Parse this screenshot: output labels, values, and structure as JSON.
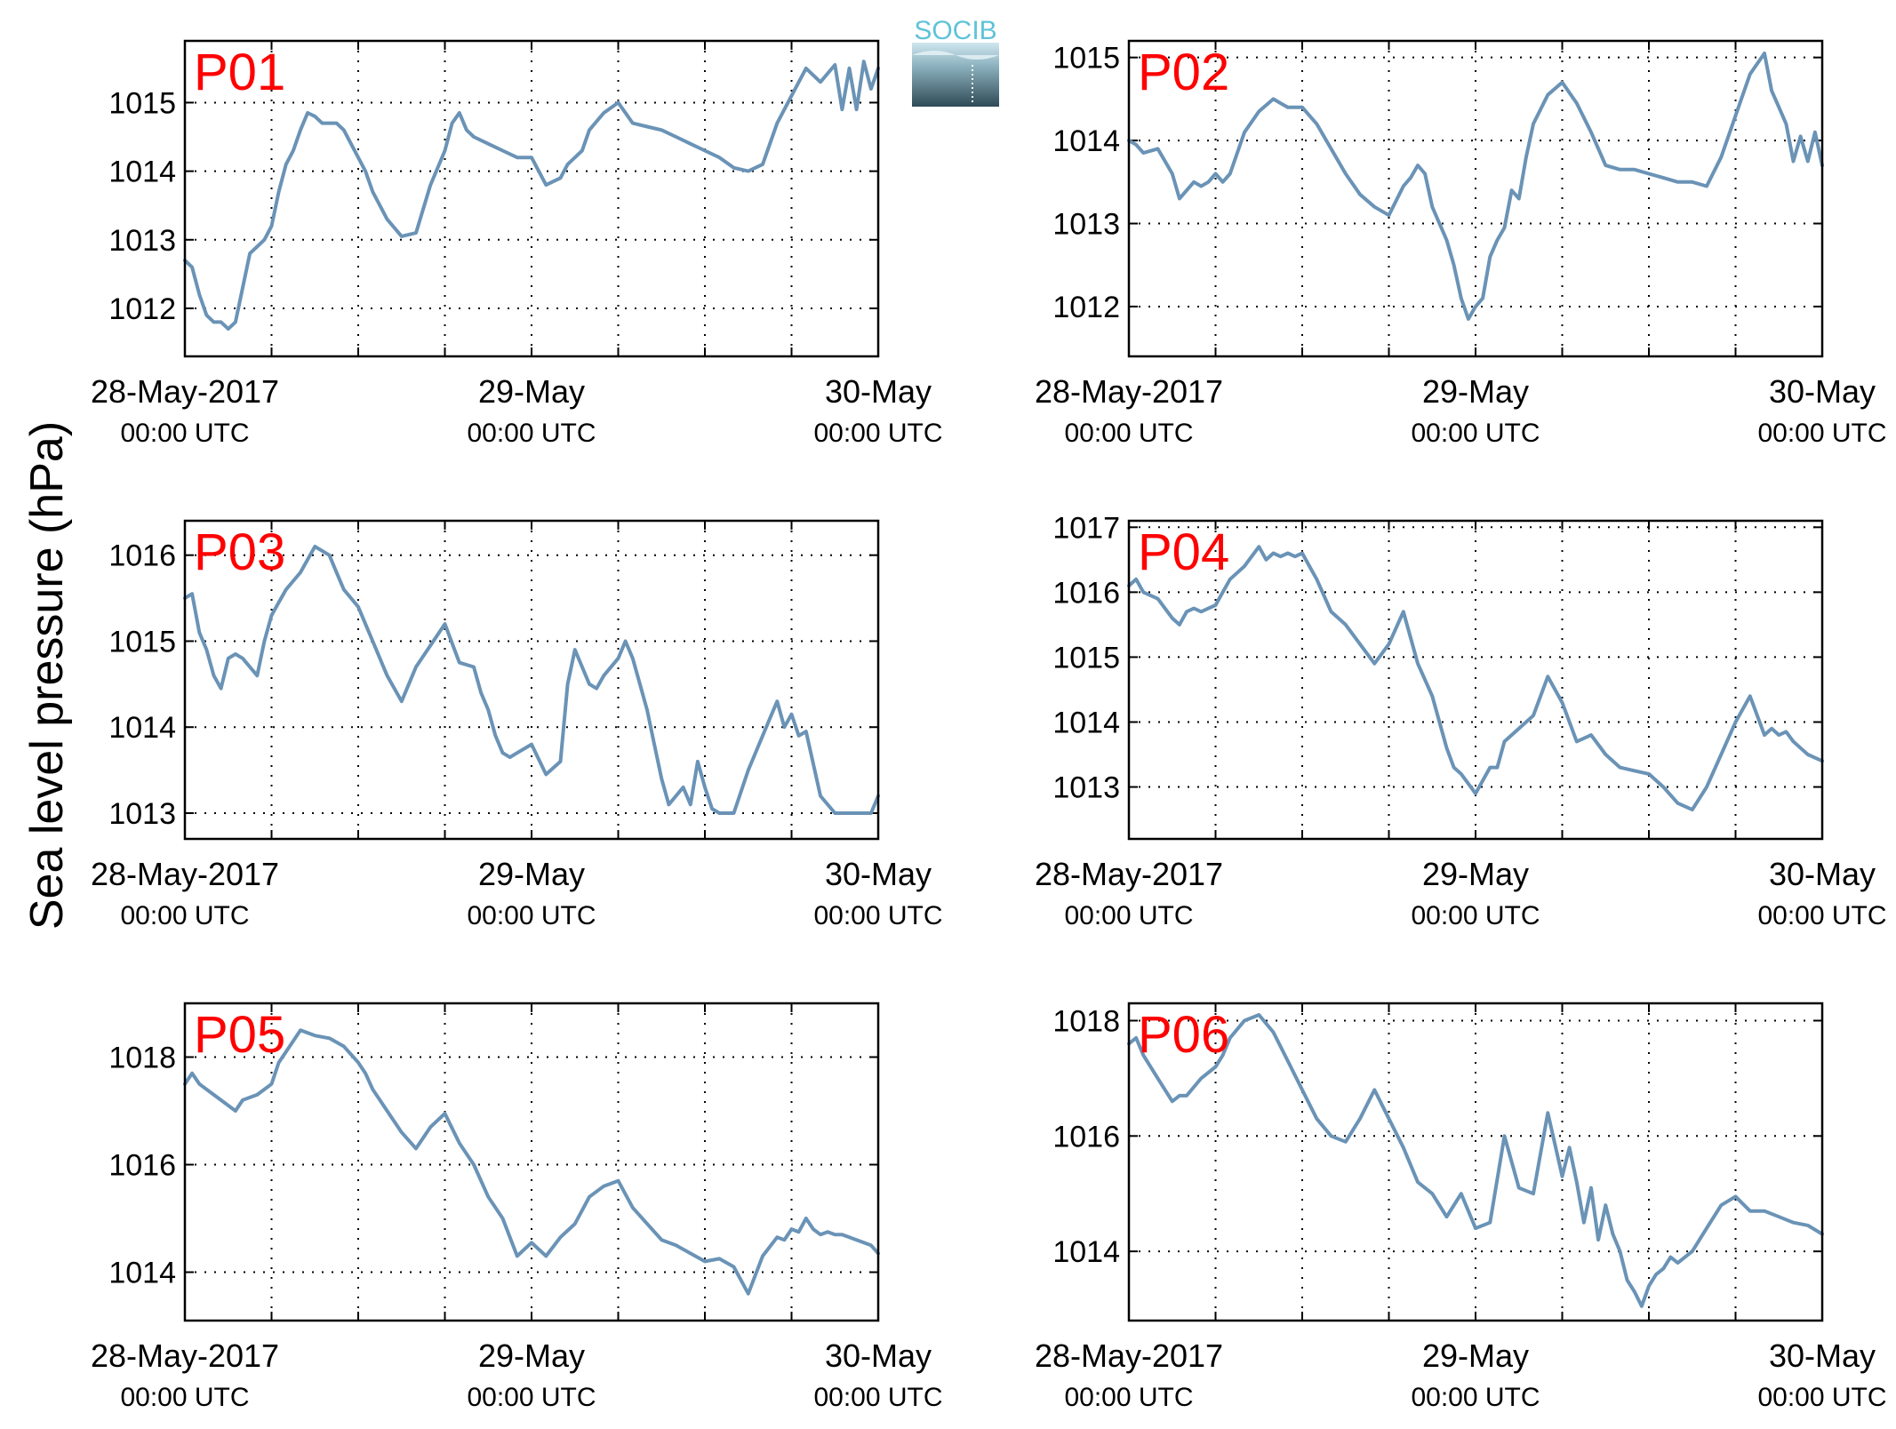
{
  "figure": {
    "ylabel": "Sea level pressure (hPa)",
    "logo_text": "SOCIB",
    "line_color": "#6a93b6",
    "label_color": "#ff0000",
    "x_tick_dates": [
      "28-May-2017",
      "29-May",
      "30-May"
    ],
    "x_tick_times": [
      "00:00 UTC",
      "00:00 UTC",
      "00:00 UTC"
    ]
  },
  "chart_data": [
    {
      "type": "line",
      "title": "P01",
      "xrange_hours": [
        0,
        48
      ],
      "ylim": [
        1011.3,
        1015.9
      ],
      "yticks": [
        1012,
        1013,
        1014,
        1015
      ],
      "grid": true,
      "x": [
        0,
        0.5,
        1,
        1.5,
        2,
        2.5,
        3,
        3.5,
        4,
        4.5,
        5,
        5.5,
        6,
        6.5,
        7,
        7.5,
        8,
        8.5,
        9,
        9.5,
        10,
        10.5,
        11,
        11.5,
        12,
        12.5,
        13,
        14,
        15,
        16,
        17,
        18,
        18.5,
        19,
        19.5,
        20,
        21,
        22,
        23,
        24,
        25,
        26,
        26.5,
        27,
        27.5,
        28,
        29,
        30,
        31,
        32,
        33,
        34,
        35,
        36,
        37,
        38,
        39,
        40,
        41,
        42,
        43,
        44,
        45,
        45.5,
        46,
        46.5,
        47,
        47.5,
        48
      ],
      "y": [
        1012.7,
        1012.6,
        1012.2,
        1011.9,
        1011.8,
        1011.8,
        1011.7,
        1011.8,
        1012.3,
        1012.8,
        1012.9,
        1013.0,
        1013.2,
        1013.7,
        1014.1,
        1014.3,
        1014.6,
        1014.85,
        1014.8,
        1014.7,
        1014.7,
        1014.7,
        1014.6,
        1014.4,
        1014.2,
        1014.0,
        1013.7,
        1013.3,
        1013.05,
        1013.1,
        1013.8,
        1014.3,
        1014.7,
        1014.85,
        1014.6,
        1014.5,
        1014.4,
        1014.3,
        1014.2,
        1014.2,
        1013.8,
        1013.9,
        1014.1,
        1014.2,
        1014.3,
        1014.6,
        1014.85,
        1015.0,
        1014.7,
        1014.65,
        1014.6,
        1014.5,
        1014.4,
        1014.3,
        1014.2,
        1014.05,
        1014.0,
        1014.1,
        1014.7,
        1015.1,
        1015.5,
        1015.3,
        1015.55,
        1014.9,
        1015.5,
        1014.9,
        1015.6,
        1015.2,
        1015.5
      ]
    },
    {
      "type": "line",
      "title": "P02",
      "xrange_hours": [
        0,
        48
      ],
      "ylim": [
        1011.4,
        1015.2
      ],
      "yticks": [
        1012,
        1013,
        1014,
        1015
      ],
      "grid": true,
      "x": [
        0,
        0.5,
        1,
        2,
        3,
        3.5,
        4,
        4.5,
        5,
        5.5,
        6,
        6.5,
        7,
        8,
        9,
        10,
        10.5,
        11,
        11.5,
        12,
        12.5,
        13,
        14,
        15,
        16,
        17,
        18,
        19,
        19.5,
        20,
        20.5,
        21,
        21.5,
        22,
        22.5,
        23,
        23.5,
        24,
        24.5,
        25,
        25.5,
        26,
        26.5,
        27,
        27.5,
        28,
        29,
        30,
        31,
        32,
        33,
        34,
        35,
        36,
        37,
        38,
        39,
        40,
        41,
        42,
        43,
        44,
        44.5,
        45,
        45.5,
        46,
        46.5,
        47,
        47.5,
        48
      ],
      "y": [
        1014.0,
        1013.95,
        1013.85,
        1013.9,
        1013.6,
        1013.3,
        1013.4,
        1013.5,
        1013.45,
        1013.5,
        1013.6,
        1013.5,
        1013.6,
        1014.1,
        1014.35,
        1014.5,
        1014.45,
        1014.4,
        1014.4,
        1014.4,
        1014.3,
        1014.2,
        1013.9,
        1013.6,
        1013.35,
        1013.2,
        1013.1,
        1013.45,
        1013.55,
        1013.7,
        1013.6,
        1013.2,
        1013.0,
        1012.8,
        1012.5,
        1012.1,
        1011.85,
        1012.0,
        1012.1,
        1012.6,
        1012.8,
        1012.95,
        1013.4,
        1013.3,
        1013.8,
        1014.2,
        1014.55,
        1014.7,
        1014.45,
        1014.1,
        1013.7,
        1013.65,
        1013.65,
        1013.6,
        1013.55,
        1013.5,
        1013.5,
        1013.45,
        1013.8,
        1014.3,
        1014.8,
        1015.05,
        1014.6,
        1014.4,
        1014.2,
        1013.75,
        1014.05,
        1013.75,
        1014.1,
        1013.7
      ]
    },
    {
      "type": "line",
      "title": "P03",
      "xrange_hours": [
        0,
        48
      ],
      "ylim": [
        1012.7,
        1016.4
      ],
      "yticks": [
        1013,
        1014,
        1015,
        1016
      ],
      "grid": true,
      "x": [
        0,
        0.5,
        1,
        1.5,
        2,
        2.5,
        3,
        3.5,
        4,
        4.5,
        5,
        5.5,
        6,
        6.5,
        7,
        8,
        9,
        10,
        10.5,
        11,
        11.5,
        12,
        13,
        14,
        15,
        16,
        17,
        18,
        19,
        20,
        20.5,
        21,
        21.5,
        22,
        22.5,
        23,
        24,
        25,
        26,
        26.5,
        27,
        28,
        28.5,
        29,
        30,
        30.5,
        31,
        31.5,
        32,
        32.5,
        33,
        33.5,
        34,
        34.5,
        35,
        35.5,
        36,
        36.5,
        37,
        38,
        39,
        40,
        40.5,
        41,
        41.5,
        42,
        42.5,
        43,
        44,
        45,
        45.5,
        46,
        46.5,
        47,
        47.5,
        48
      ],
      "y": [
        1015.5,
        1015.55,
        1015.1,
        1014.9,
        1014.6,
        1014.45,
        1014.8,
        1014.85,
        1014.8,
        1014.7,
        1014.6,
        1015.0,
        1015.3,
        1015.45,
        1015.6,
        1015.8,
        1016.1,
        1016.0,
        1015.8,
        1015.6,
        1015.5,
        1015.4,
        1015.0,
        1014.6,
        1014.3,
        1014.7,
        1014.95,
        1015.2,
        1014.75,
        1014.7,
        1014.4,
        1014.2,
        1013.9,
        1013.7,
        1013.65,
        1013.7,
        1013.8,
        1013.45,
        1013.6,
        1014.5,
        1014.9,
        1014.5,
        1014.45,
        1014.6,
        1014.8,
        1015.0,
        1014.8,
        1014.5,
        1014.2,
        1013.8,
        1013.4,
        1013.1,
        1013.2,
        1013.3,
        1013.1,
        1013.6,
        1013.3,
        1013.05,
        1013.0,
        1013.0,
        1013.5,
        1013.9,
        1014.1,
        1014.3,
        1014.0,
        1014.15,
        1013.9,
        1013.95,
        1013.2,
        1013.0,
        1013.0,
        1013.0,
        1013.0,
        1013.0,
        1013.0,
        1013.2
      ]
    },
    {
      "type": "line",
      "title": "P04",
      "xrange_hours": [
        0,
        48
      ],
      "ylim": [
        1012.2,
        1017.1
      ],
      "yticks": [
        1013,
        1014,
        1015,
        1016,
        1017
      ],
      "grid": true,
      "x": [
        0,
        0.5,
        1,
        2,
        3,
        3.5,
        4,
        4.5,
        5,
        5.5,
        6,
        6.5,
        7,
        8,
        9,
        9.5,
        10,
        10.5,
        11,
        11.5,
        12,
        12.5,
        13,
        14,
        15,
        16,
        17,
        18,
        19,
        20,
        21,
        22,
        22.5,
        23,
        24,
        25,
        25.5,
        26,
        27,
        28,
        29,
        30,
        31,
        32,
        33,
        34,
        35,
        36,
        37,
        38,
        39,
        40,
        41,
        42,
        43,
        44,
        44.5,
        45,
        45.5,
        46,
        46.5,
        47,
        47.5,
        48
      ],
      "y": [
        1016.1,
        1016.2,
        1016.0,
        1015.9,
        1015.6,
        1015.5,
        1015.7,
        1015.75,
        1015.7,
        1015.75,
        1015.8,
        1016.0,
        1016.2,
        1016.4,
        1016.7,
        1016.5,
        1016.6,
        1016.55,
        1016.6,
        1016.55,
        1016.6,
        1016.4,
        1016.2,
        1015.7,
        1015.5,
        1015.2,
        1014.9,
        1015.2,
        1015.7,
        1014.9,
        1014.4,
        1013.6,
        1013.3,
        1013.2,
        1012.9,
        1013.3,
        1013.3,
        1013.7,
        1013.9,
        1014.1,
        1014.7,
        1014.3,
        1013.7,
        1013.8,
        1013.5,
        1013.3,
        1013.25,
        1013.2,
        1013.0,
        1012.75,
        1012.65,
        1013.0,
        1013.5,
        1014.0,
        1014.4,
        1013.8,
        1013.9,
        1013.8,
        1013.85,
        1013.7,
        1013.6,
        1013.5,
        1013.45,
        1013.4
      ]
    },
    {
      "type": "line",
      "title": "P05",
      "xrange_hours": [
        0,
        48
      ],
      "ylim": [
        1013.1,
        1019.0
      ],
      "yticks": [
        1014,
        1016,
        1018
      ],
      "grid": true,
      "x": [
        0,
        0.5,
        1,
        2,
        3,
        3.5,
        4,
        5,
        6,
        6.5,
        7,
        8,
        9,
        10,
        11,
        12,
        12.5,
        13,
        14,
        15,
        16,
        17,
        18,
        19,
        20,
        21,
        22,
        23,
        24,
        25,
        26,
        27,
        28,
        29,
        30,
        31,
        32,
        33,
        34,
        35,
        36,
        37,
        38,
        39,
        40,
        41,
        41.5,
        42,
        42.5,
        43,
        43.5,
        44,
        44.5,
        45,
        45.5,
        46,
        46.5,
        47,
        47.5,
        48
      ],
      "y": [
        1017.5,
        1017.7,
        1017.5,
        1017.3,
        1017.1,
        1017.0,
        1017.2,
        1017.3,
        1017.5,
        1017.9,
        1018.1,
        1018.5,
        1018.4,
        1018.35,
        1018.2,
        1017.9,
        1017.7,
        1017.4,
        1017.0,
        1016.6,
        1016.3,
        1016.7,
        1016.95,
        1016.4,
        1016.0,
        1015.4,
        1015.0,
        1014.3,
        1014.55,
        1014.3,
        1014.65,
        1014.9,
        1015.4,
        1015.6,
        1015.7,
        1015.2,
        1014.9,
        1014.6,
        1014.5,
        1014.35,
        1014.2,
        1014.25,
        1014.1,
        1013.6,
        1014.3,
        1014.65,
        1014.6,
        1014.8,
        1014.75,
        1015.0,
        1014.8,
        1014.7,
        1014.75,
        1014.7,
        1014.7,
        1014.65,
        1014.6,
        1014.55,
        1014.5,
        1014.35
      ]
    },
    {
      "type": "line",
      "title": "P06",
      "xrange_hours": [
        0,
        48
      ],
      "ylim": [
        1012.8,
        1018.3
      ],
      "yticks": [
        1014,
        1016,
        1018
      ],
      "grid": true,
      "x": [
        0,
        0.5,
        1,
        2,
        3,
        3.5,
        4,
        5,
        6,
        6.5,
        7,
        8,
        9,
        10,
        11,
        12,
        13,
        14,
        15,
        16,
        17,
        18,
        19,
        20,
        21,
        22,
        23,
        24,
        25,
        26,
        27,
        28,
        29,
        30,
        30.5,
        31,
        31.5,
        32,
        32.5,
        33,
        33.5,
        34,
        34.5,
        35,
        35.5,
        36,
        36.5,
        37,
        37.5,
        38,
        38.5,
        39,
        39.5,
        40,
        41,
        42,
        43,
        44,
        45,
        46,
        47,
        48
      ],
      "y": [
        1017.6,
        1017.7,
        1017.4,
        1017.0,
        1016.6,
        1016.7,
        1016.7,
        1017.0,
        1017.2,
        1017.4,
        1017.7,
        1018.0,
        1018.1,
        1017.8,
        1017.3,
        1016.8,
        1016.3,
        1016.0,
        1015.9,
        1016.3,
        1016.8,
        1016.3,
        1015.8,
        1015.2,
        1015.0,
        1014.6,
        1015.0,
        1014.4,
        1014.5,
        1016.0,
        1015.1,
        1015.0,
        1016.4,
        1015.3,
        1015.8,
        1015.2,
        1014.5,
        1015.1,
        1014.2,
        1014.8,
        1014.3,
        1014.0,
        1013.5,
        1013.3,
        1013.05,
        1013.4,
        1013.6,
        1013.7,
        1013.9,
        1013.8,
        1013.9,
        1014.0,
        1014.2,
        1014.4,
        1014.8,
        1014.95,
        1014.7,
        1014.7,
        1014.6,
        1014.5,
        1014.45,
        1014.3
      ]
    }
  ]
}
